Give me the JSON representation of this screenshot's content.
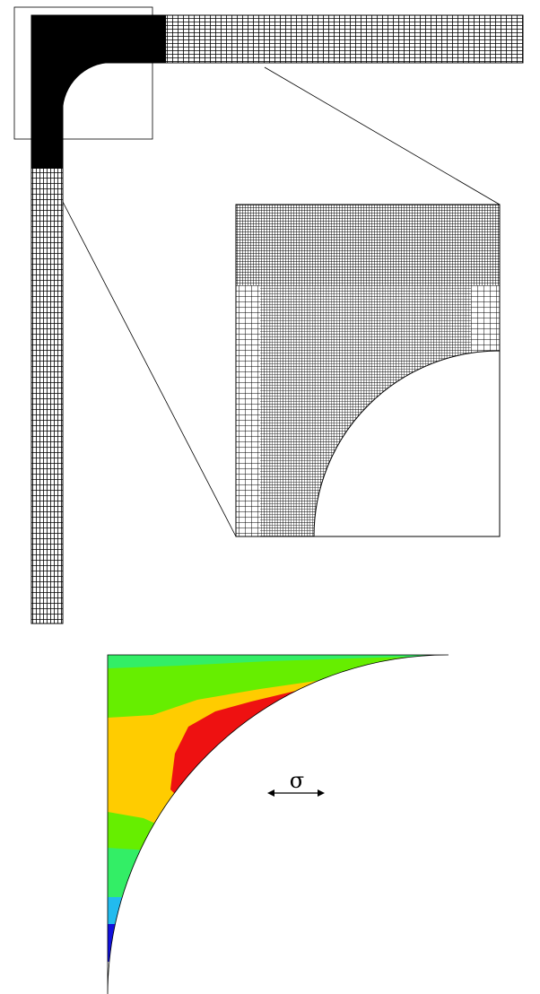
{
  "labels": {
    "stress": "σ"
  }
}
